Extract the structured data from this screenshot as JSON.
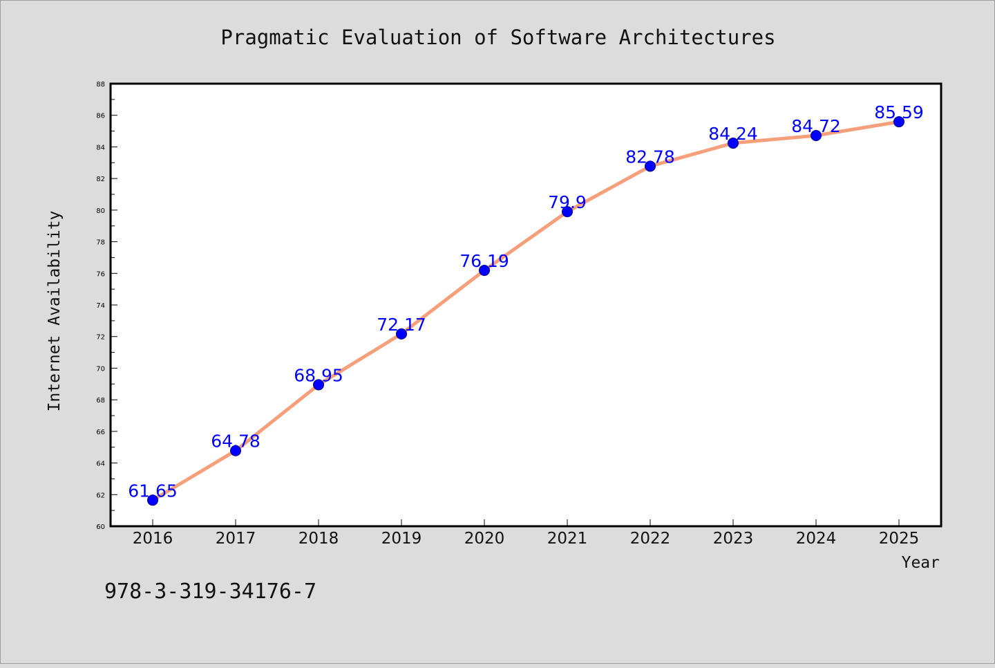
{
  "chart_data": {
    "type": "line",
    "title": "Pragmatic Evaluation of Software Architectures",
    "xlabel": "Year",
    "ylabel": "Internet Availability",
    "categories": [
      "2016",
      "2017",
      "2018",
      "2019",
      "2020",
      "2021",
      "2022",
      "2023",
      "2024",
      "2025"
    ],
    "values": [
      61.65,
      64.78,
      68.95,
      72.17,
      76.19,
      79.9,
      82.78,
      84.24,
      84.72,
      85.59
    ],
    "data_labels": [
      "61.65",
      "64.78",
      "68.95",
      "72.17",
      "76.19",
      "79.9",
      "82.78",
      "84.24",
      "84.72",
      "85.59"
    ],
    "ylim": [
      60,
      88
    ],
    "yticks": [
      60,
      62,
      64,
      66,
      68,
      70,
      72,
      74,
      76,
      78,
      80,
      82,
      84,
      86,
      88
    ],
    "grid": false,
    "legend": "none",
    "line_color": "#f5a07a",
    "marker_color": "#0000ff",
    "label_color": "#0000ff",
    "background_color": "#dcdcdc",
    "plot_background_color": "#ffffff"
  },
  "footnote": "978-3-319-34176-7"
}
